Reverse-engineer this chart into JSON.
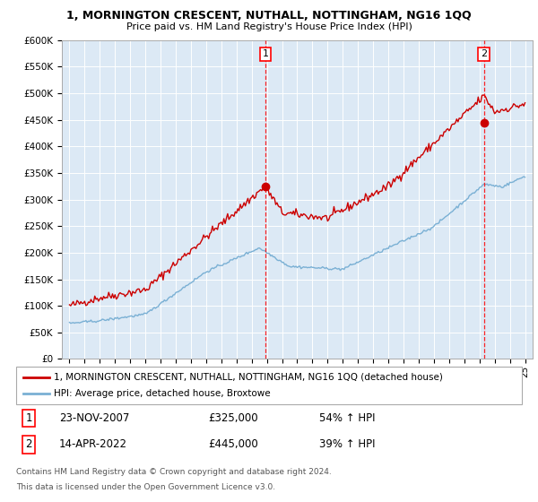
{
  "title": "1, MORNINGTON CRESCENT, NUTHALL, NOTTINGHAM, NG16 1QQ",
  "subtitle": "Price paid vs. HM Land Registry's House Price Index (HPI)",
  "red_label": "1, MORNINGTON CRESCENT, NUTHALL, NOTTINGHAM, NG16 1QQ (detached house)",
  "blue_label": "HPI: Average price, detached house, Broxtowe",
  "annotation1_date": "23-NOV-2007",
  "annotation1_price": "£325,000",
  "annotation1_hpi": "54% ↑ HPI",
  "annotation2_date": "14-APR-2022",
  "annotation2_price": "£445,000",
  "annotation2_hpi": "39% ↑ HPI",
  "footnote1": "Contains HM Land Registry data © Crown copyright and database right 2024.",
  "footnote2": "This data is licensed under the Open Government Licence v3.0.",
  "ylim_min": 0,
  "ylim_max": 600000,
  "yticks": [
    0,
    50000,
    100000,
    150000,
    200000,
    250000,
    300000,
    350000,
    400000,
    450000,
    500000,
    550000,
    600000
  ],
  "x_start_year": 1995,
  "x_end_year": 2025,
  "vline1_year": 2007.9,
  "vline2_year": 2022.3,
  "marker1_red_year": 2007.9,
  "marker1_red_val": 325000,
  "marker2_red_year": 2022.3,
  "marker2_red_val": 445000,
  "bg_color": "#dce9f5",
  "red_color": "#cc0000",
  "blue_color": "#7ab0d4"
}
